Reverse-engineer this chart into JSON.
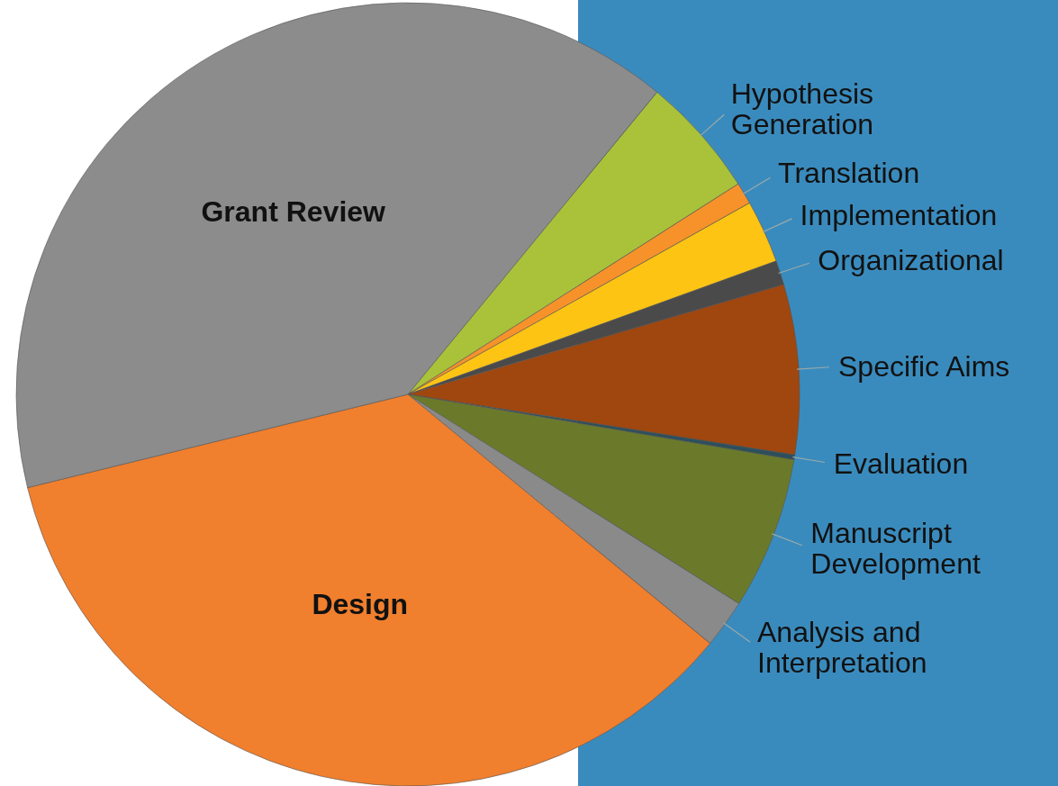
{
  "chart_data": {
    "type": "pie",
    "categories": [
      "Hypothesis Generation",
      "Translation",
      "Implementation",
      "Organizational",
      "Specific Aims",
      "Evaluation",
      "Manuscript Development",
      "Analysis and Interpretation",
      "Design",
      "Grant Review"
    ],
    "values": [
      5.0,
      0.9,
      2.6,
      1.0,
      7.0,
      0.2,
      6.3,
      2.0,
      35.2,
      39.8
    ],
    "colors": [
      "#a9c23a",
      "#f7922a",
      "#fdc414",
      "#4a4a4a",
      "#a0460f",
      "#2d4f5c",
      "#6b7a2a",
      "#8a8a8a",
      "#f07f2e",
      "#8c8c8c"
    ]
  }
}
